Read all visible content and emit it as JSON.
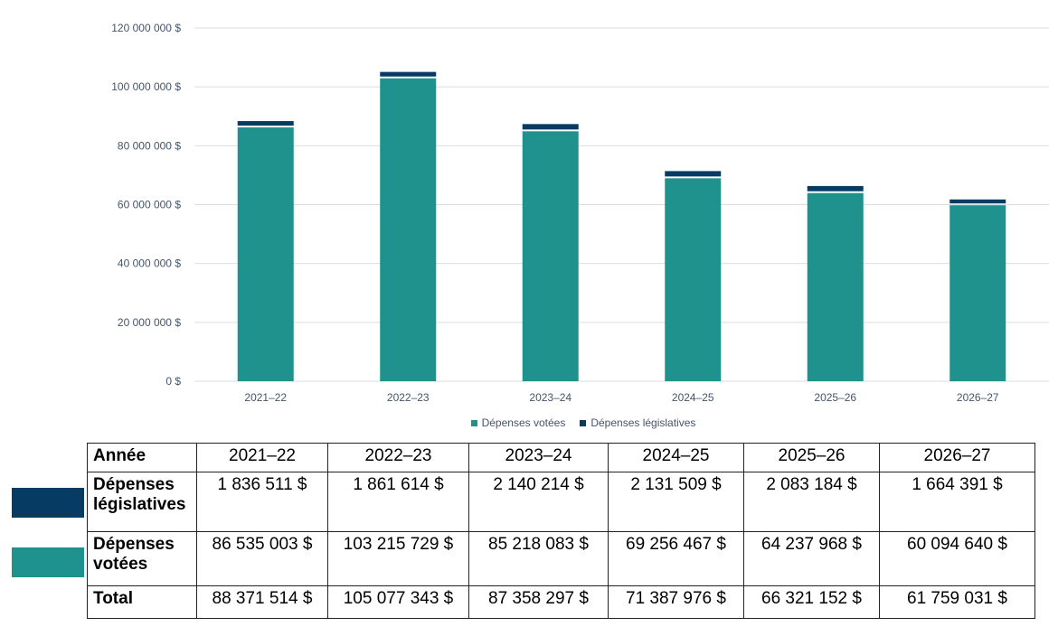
{
  "chart_data": {
    "type": "bar",
    "stacked": true,
    "categories": [
      "2021–22",
      "2022–23",
      "2023–24",
      "2024–25",
      "2025–26",
      "2026–27"
    ],
    "series": [
      {
        "name": "Dépenses votées",
        "color": "#1f928d",
        "values": [
          86535003,
          103215729,
          85218083,
          69256467,
          64237968,
          60094640
        ]
      },
      {
        "name": "Dépenses législatives",
        "color": "#063b63",
        "values": [
          1836511,
          1861614,
          2140214,
          2131509,
          2083184,
          1664391
        ]
      }
    ],
    "ylim": [
      0,
      120000000
    ],
    "yticks": [
      "0 $",
      "20 000 000 $",
      "40 000 000 $",
      "60 000 000 $",
      "80 000 000 $",
      "100 000 000 $",
      "120 000 000 $"
    ],
    "grid": true,
    "legend": "bottom"
  },
  "table": {
    "header": [
      "Année",
      "2021–22",
      "2022–23",
      "2023–24",
      "2024–25",
      "2025–26",
      "2026–27"
    ],
    "rows": [
      [
        "Dépenses législatives",
        "1 836 511 $",
        "1 861 614 $",
        "2 140 214 $",
        "2 131 509 $",
        "2 083 184 $",
        "1 664 391 $"
      ],
      [
        "Dépenses votées",
        "86 535 003 $",
        "103 215 729 $",
        "85 218 083 $",
        "69 256 467 $",
        "64 237 968 $",
        "60 094 640 $"
      ],
      [
        "Total",
        "88 371 514 $",
        "105 077 343 $",
        "87 358 297 $",
        "71 387 976 $",
        "66 321 152 $",
        "61 759 031 $"
      ]
    ]
  }
}
